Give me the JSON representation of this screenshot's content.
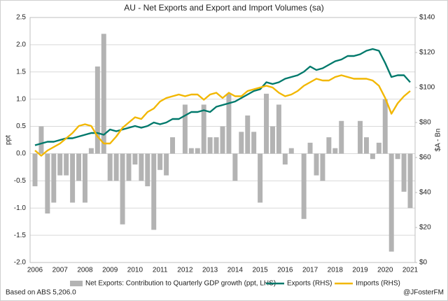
{
  "chart_data": {
    "type": "bar",
    "title": "AU - Net Exports and Export and Import Volumes (sa)",
    "y_label": "ppt",
    "y2_label": "$A - Bn",
    "source": "Based on ABS 5,206.0",
    "credit": "@JFosterFM",
    "grid": true,
    "legend": "bottom",
    "categories": [
      "2006",
      null,
      null,
      null,
      "2007",
      null,
      null,
      null,
      "2008",
      null,
      null,
      null,
      "2009",
      null,
      null,
      null,
      "2010",
      null,
      null,
      null,
      "2011",
      null,
      null,
      null,
      "2012",
      null,
      null,
      null,
      "2013",
      null,
      null,
      null,
      "2014",
      null,
      null,
      null,
      "2015",
      null,
      null,
      null,
      "2016",
      null,
      null,
      null,
      "2017",
      null,
      null,
      null,
      "2018",
      null,
      null,
      null,
      "2019",
      null,
      null,
      null,
      "2020",
      null,
      null,
      null,
      "2021"
    ],
    "ylim": [
      -2,
      2.5
    ],
    "yticks": [
      {
        "value": -2,
        "label": "-2.0"
      },
      {
        "value": -1.5,
        "label": "-1.5"
      },
      {
        "value": -1,
        "label": "-1.0"
      },
      {
        "value": -0.5,
        "label": "-0.5"
      },
      {
        "value": 0,
        "label": "0.0"
      },
      0.5,
      {
        "value": 1,
        "label": "1.0"
      },
      1.5,
      {
        "value": 2,
        "label": "2.0"
      },
      2.5
    ],
    "y2lim": [
      0,
      140
    ],
    "y2ticks": [
      {
        "value": 0,
        "label": "$0"
      },
      {
        "value": 20,
        "label": "$20"
      },
      {
        "value": 40,
        "label": "$40"
      },
      {
        "value": 60,
        "label": "$60"
      },
      {
        "value": 80,
        "label": "$80"
      },
      {
        "value": 100,
        "label": "$100"
      },
      {
        "value": 120,
        "label": "$120"
      },
      {
        "value": 140,
        "label": "$140"
      }
    ],
    "series": [
      {
        "name": "Net Exports: Contribution to Quarterly GDP growth (ppt, LHS)",
        "type": "bar",
        "axis": "y",
        "color": "#b3b3b3",
        "values": [
          -0.6,
          0.5,
          -1.1,
          -0.9,
          -0.4,
          -0.4,
          -0.9,
          -0.5,
          -0.9,
          0.1,
          1.6,
          2.2,
          -0.5,
          -0.5,
          -1.3,
          -0.5,
          -0.2,
          -0.5,
          -0.6,
          -1.4,
          -0.3,
          -0.4,
          0.3,
          0,
          0.9,
          0.1,
          0.1,
          0.9,
          0.3,
          0.3,
          0.5,
          1.1,
          -0.5,
          0.4,
          0.7,
          0.4,
          -0.9,
          1.1,
          0.5,
          0.9,
          -0.2,
          0.1,
          0,
          -1.2,
          0.2,
          -0.4,
          -0.5,
          0.3,
          0.1,
          0.6,
          0,
          0,
          0.6,
          0.3,
          -0.1,
          0.2,
          1,
          -1.8,
          -0.1,
          -0.7,
          -1
        ]
      },
      {
        "name": "Exports (RHS)",
        "type": "line",
        "axis": "y2",
        "color": "#00796b",
        "values": [
          67,
          68,
          69,
          69,
          70,
          71,
          71,
          72,
          73,
          74,
          74,
          73,
          76,
          75,
          76,
          77,
          78,
          77,
          78,
          80,
          79,
          80,
          82,
          82,
          84,
          86,
          86,
          87,
          86,
          89,
          90,
          91,
          92,
          94,
          96,
          98,
          99,
          103,
          102,
          103,
          105,
          106,
          107,
          109,
          112,
          110,
          111,
          113,
          115,
          116,
          118,
          118,
          119,
          121,
          122,
          121,
          114,
          106,
          107,
          107,
          103
        ]
      },
      {
        "name": "Imports (RHS)",
        "type": "line",
        "axis": "y2",
        "color": "#f2b700",
        "values": [
          64,
          61,
          64,
          66,
          68,
          71,
          74,
          78,
          79,
          78,
          72,
          68,
          68,
          72,
          77,
          80,
          83,
          82,
          86,
          88,
          92,
          94,
          95,
          96,
          95,
          96,
          96,
          93,
          96,
          97,
          94,
          97,
          95,
          95,
          98,
          99,
          100,
          101,
          100,
          97,
          95,
          96,
          98,
          101,
          103,
          105,
          104,
          104,
          106,
          107,
          106,
          105,
          105,
          105,
          104,
          101,
          94,
          85,
          91,
          95,
          98
        ]
      }
    ]
  }
}
